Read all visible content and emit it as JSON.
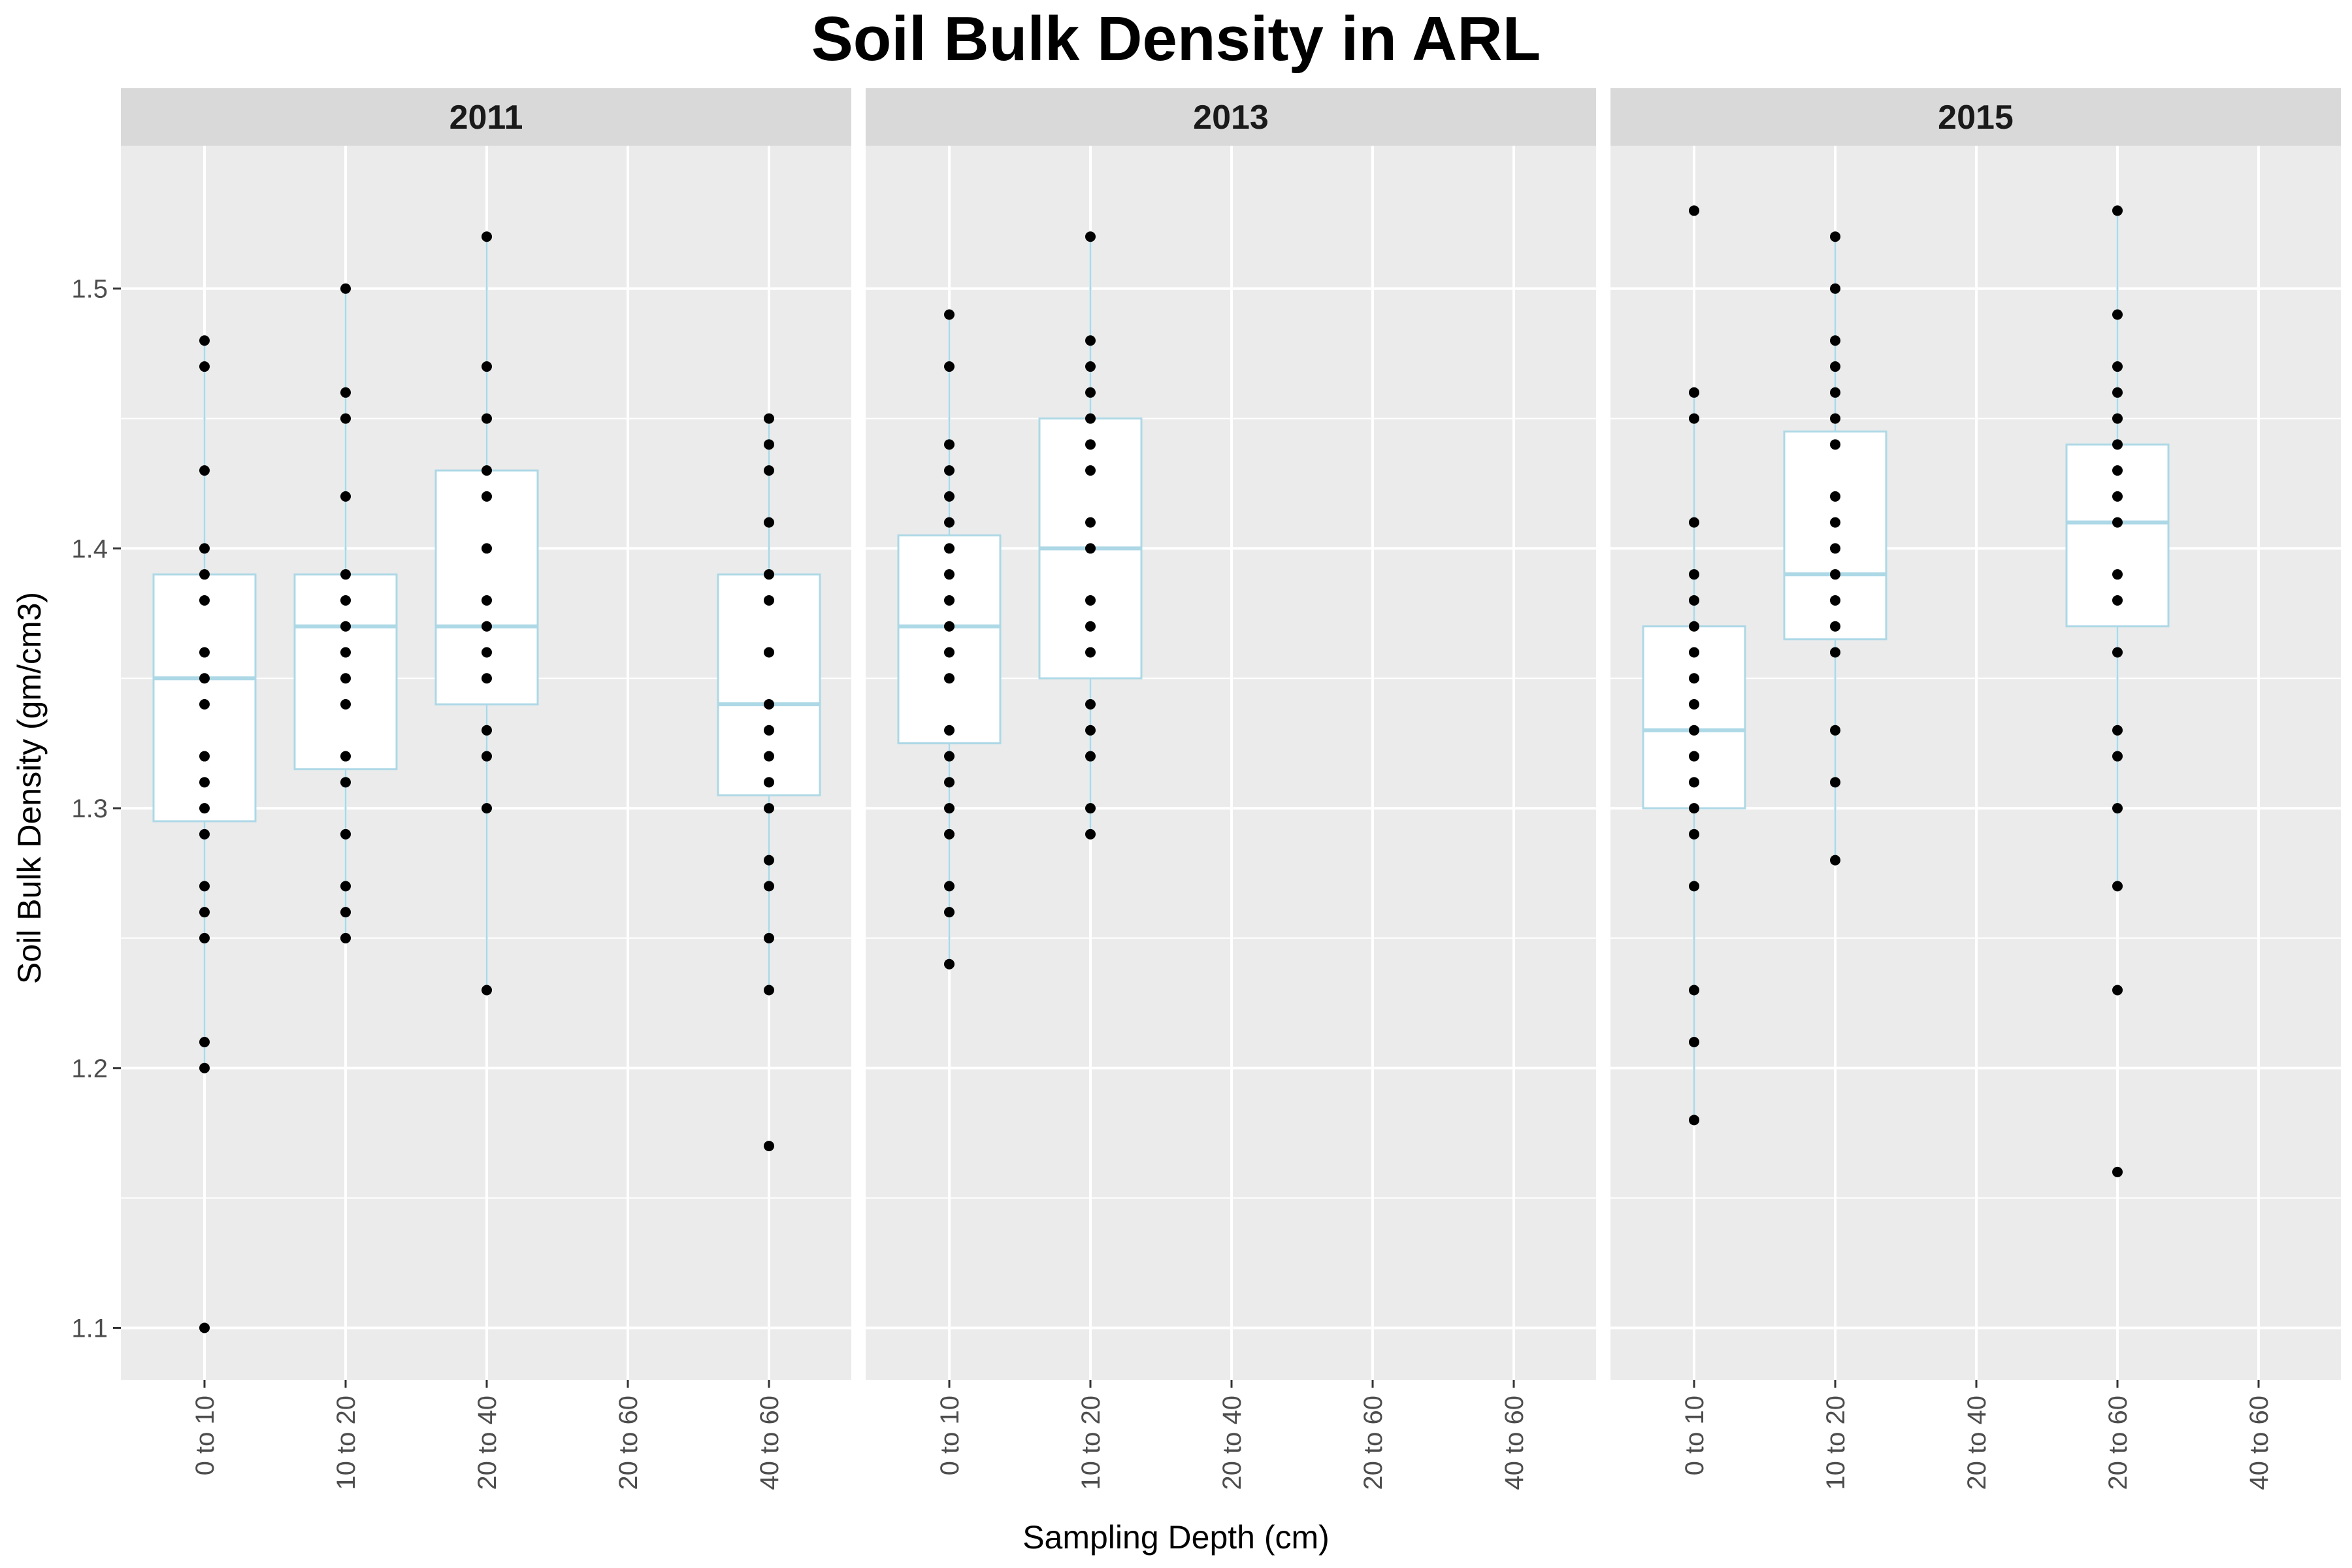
{
  "chart_data": {
    "type": "boxplot",
    "title": "Soil Bulk Density in ARL",
    "xlabel": "Sampling Depth (cm)",
    "ylabel": "Soil Bulk Density (gm/cm3)",
    "ylim": [
      1.08,
      1.555
    ],
    "y_ticks": [
      1.1,
      1.2,
      1.3,
      1.4,
      1.5
    ],
    "y_tick_labels": [
      "1.1",
      "1.2",
      "1.3",
      "1.4",
      "1.5"
    ],
    "grid": true,
    "colors": {
      "panel_background": "#EBEBEB",
      "strip_background": "#D9D9D9",
      "grid": "#FFFFFF",
      "box_outline": "#ADD8E6",
      "box_fill": "#FFFFFF",
      "point": "#000000"
    },
    "panels": [
      {
        "name": "2011",
        "categories": [
          "0 to 10",
          "10 to 20",
          "20 to 40",
          "20 to 60",
          "40 to 60"
        ],
        "boxes": [
          {
            "category": "0 to 10",
            "lower_whisker": 1.2,
            "q1": 1.295,
            "median": 1.35,
            "q3": 1.39,
            "upper_whisker": 1.48
          },
          {
            "category": "10 to 20",
            "lower_whisker": 1.25,
            "q1": 1.315,
            "median": 1.37,
            "q3": 1.39,
            "upper_whisker": 1.5
          },
          {
            "category": "20 to 40",
            "lower_whisker": 1.23,
            "q1": 1.34,
            "median": 1.37,
            "q3": 1.43,
            "upper_whisker": 1.52
          },
          {
            "category": "40 to 60",
            "lower_whisker": 1.23,
            "q1": 1.305,
            "median": 1.34,
            "q3": 1.39,
            "upper_whisker": 1.45
          }
        ],
        "points": [
          {
            "category": "0 to 10",
            "values": [
              1.48,
              1.47,
              1.43,
              1.4,
              1.39,
              1.38,
              1.36,
              1.35,
              1.34,
              1.32,
              1.31,
              1.3,
              1.29,
              1.27,
              1.26,
              1.25,
              1.21,
              1.2,
              1.1
            ]
          },
          {
            "category": "10 to 20",
            "values": [
              1.5,
              1.46,
              1.45,
              1.42,
              1.39,
              1.38,
              1.37,
              1.36,
              1.35,
              1.34,
              1.32,
              1.31,
              1.29,
              1.27,
              1.26,
              1.25
            ]
          },
          {
            "category": "20 to 40",
            "values": [
              1.52,
              1.47,
              1.45,
              1.43,
              1.42,
              1.4,
              1.38,
              1.37,
              1.36,
              1.35,
              1.33,
              1.32,
              1.3,
              1.23
            ]
          },
          {
            "category": "40 to 60",
            "values": [
              1.45,
              1.44,
              1.43,
              1.41,
              1.39,
              1.38,
              1.36,
              1.34,
              1.33,
              1.32,
              1.31,
              1.3,
              1.28,
              1.27,
              1.25,
              1.23,
              1.17
            ]
          }
        ]
      },
      {
        "name": "2013",
        "categories": [
          "0 to 10",
          "10 to 20",
          "20 to 40",
          "20 to 60",
          "40 to 60"
        ],
        "boxes": [
          {
            "category": "0 to 10",
            "lower_whisker": 1.24,
            "q1": 1.325,
            "median": 1.37,
            "q3": 1.405,
            "upper_whisker": 1.49
          },
          {
            "category": "10 to 20",
            "lower_whisker": 1.29,
            "q1": 1.35,
            "median": 1.4,
            "q3": 1.45,
            "upper_whisker": 1.52
          }
        ],
        "points": [
          {
            "category": "0 to 10",
            "values": [
              1.49,
              1.47,
              1.44,
              1.43,
              1.42,
              1.41,
              1.4,
              1.39,
              1.38,
              1.37,
              1.36,
              1.35,
              1.33,
              1.32,
              1.31,
              1.3,
              1.29,
              1.27,
              1.26,
              1.24
            ]
          },
          {
            "category": "10 to 20",
            "values": [
              1.52,
              1.48,
              1.47,
              1.46,
              1.45,
              1.44,
              1.43,
              1.41,
              1.4,
              1.38,
              1.37,
              1.36,
              1.34,
              1.33,
              1.32,
              1.3,
              1.29
            ]
          }
        ]
      },
      {
        "name": "2015",
        "categories": [
          "0 to 10",
          "10 to 20",
          "20 to 40",
          "20 to 60",
          "40 to 60"
        ],
        "boxes": [
          {
            "category": "0 to 10",
            "lower_whisker": 1.18,
            "q1": 1.3,
            "median": 1.33,
            "q3": 1.37,
            "upper_whisker": 1.46
          },
          {
            "category": "10 to 20",
            "lower_whisker": 1.28,
            "q1": 1.365,
            "median": 1.39,
            "q3": 1.445,
            "upper_whisker": 1.52
          },
          {
            "category": "20 to 60",
            "lower_whisker": 1.27,
            "q1": 1.37,
            "median": 1.41,
            "q3": 1.44,
            "upper_whisker": 1.53
          }
        ],
        "points": [
          {
            "category": "0 to 10",
            "values": [
              1.53,
              1.46,
              1.45,
              1.41,
              1.39,
              1.38,
              1.37,
              1.36,
              1.35,
              1.34,
              1.33,
              1.32,
              1.31,
              1.3,
              1.29,
              1.27,
              1.23,
              1.21,
              1.18
            ]
          },
          {
            "category": "10 to 20",
            "values": [
              1.52,
              1.5,
              1.48,
              1.47,
              1.46,
              1.45,
              1.44,
              1.42,
              1.41,
              1.4,
              1.39,
              1.38,
              1.37,
              1.36,
              1.33,
              1.31,
              1.28
            ]
          },
          {
            "category": "20 to 60",
            "values": [
              1.53,
              1.49,
              1.47,
              1.46,
              1.45,
              1.44,
              1.43,
              1.42,
              1.41,
              1.39,
              1.38,
              1.36,
              1.33,
              1.32,
              1.3,
              1.27,
              1.23,
              1.16
            ]
          }
        ]
      }
    ]
  }
}
